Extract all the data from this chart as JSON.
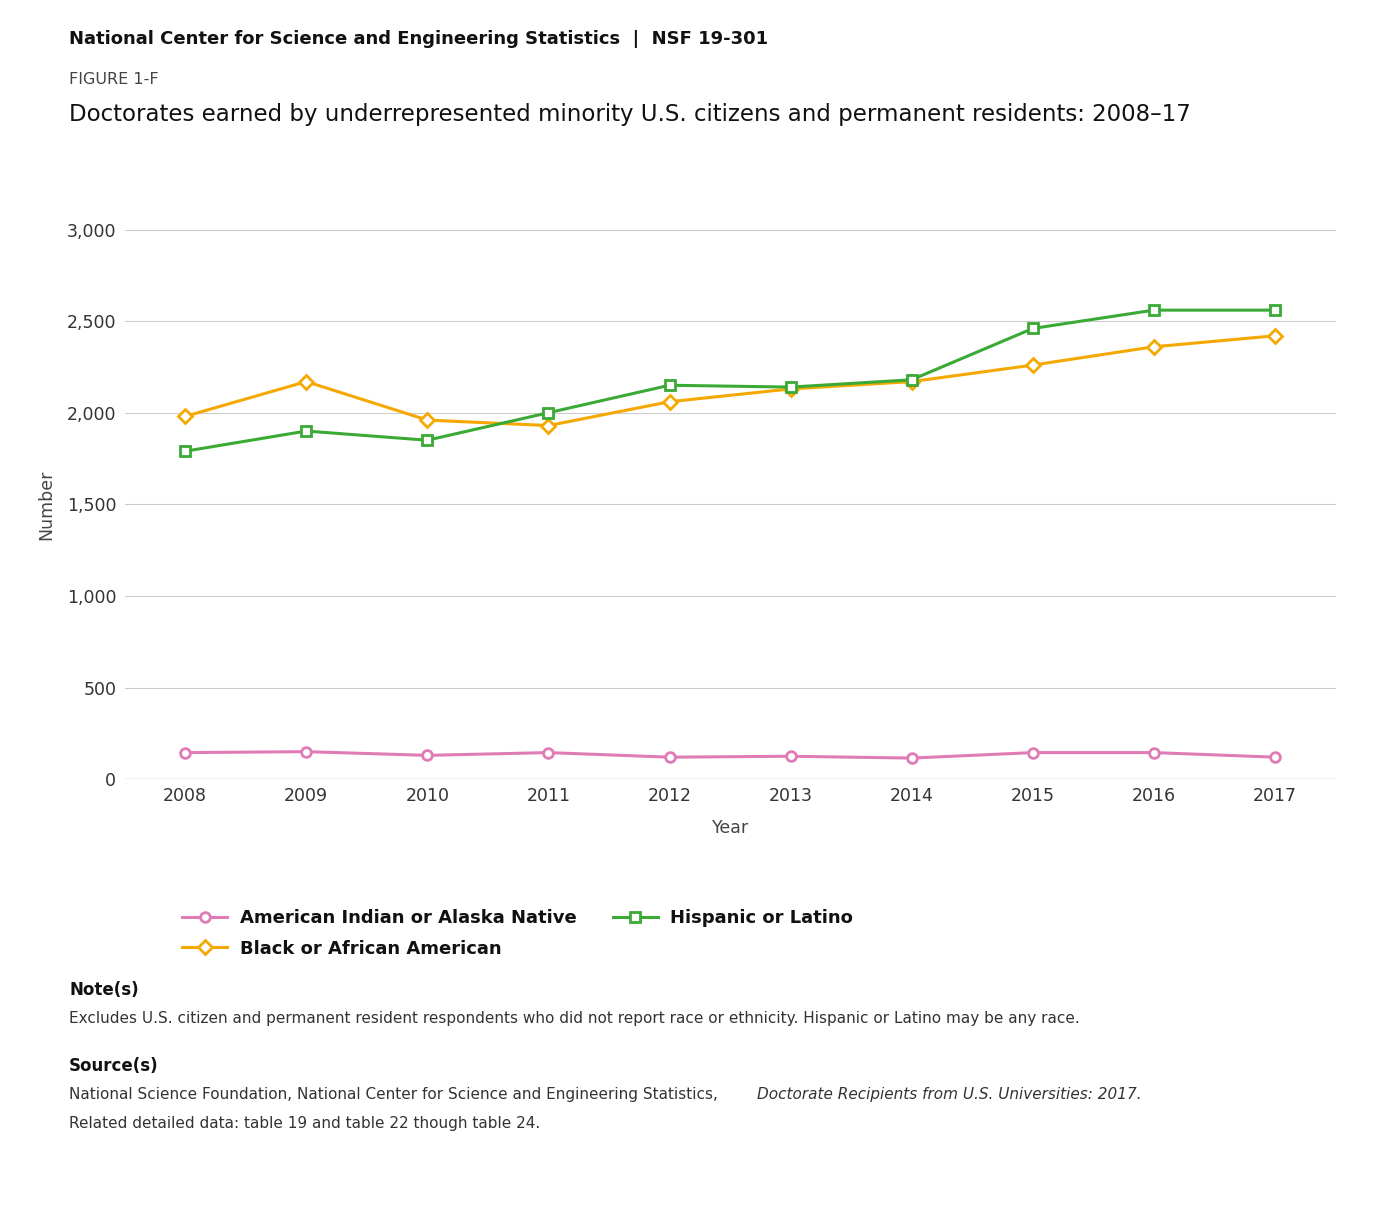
{
  "years": [
    2008,
    2009,
    2010,
    2011,
    2012,
    2013,
    2014,
    2015,
    2016,
    2017
  ],
  "american_indian": [
    145,
    150,
    130,
    145,
    120,
    125,
    115,
    145,
    145,
    120
  ],
  "black_african": [
    1980,
    2170,
    1960,
    1930,
    2060,
    2130,
    2170,
    2260,
    2360,
    2420
  ],
  "hispanic_latino": [
    1790,
    1900,
    1850,
    2000,
    2150,
    2140,
    2180,
    2460,
    2560,
    2560
  ],
  "colors": {
    "american_indian": "#e07bb5",
    "black_african": "#f5a800",
    "hispanic_latino": "#3aaa35"
  },
  "title_org": "National Center for Science and Engineering Statistics  |  NSF 19-301",
  "figure_label": "FIGURE 1-F",
  "chart_title": "Doctorates earned by underrepresented minority U.S. citizens and permanent residents: 2008–17",
  "ylabel": "Number",
  "xlabel": "Year",
  "ylim": [
    0,
    3000
  ],
  "yticks": [
    0,
    500,
    1000,
    1500,
    2000,
    2500,
    3000
  ],
  "legend_labels": [
    "American Indian or Alaska Native",
    "Black or African American",
    "Hispanic or Latino"
  ],
  "note_title": "Note(s)",
  "note_text": "Excludes U.S. citizen and permanent resident respondents who did not report race or ethnicity. Hispanic or Latino may be any race.",
  "source_title": "Source(s)",
  "source_normal": "National Science Foundation, National Center for Science and Engineering Statistics, ",
  "source_italic": "Doctorate Recipients from U.S. Universities: 2017.",
  "source_line2": "Related detailed data: table 19 and table 22 though table 24.",
  "background_color": "#ffffff",
  "marker_size": 7,
  "line_width": 2.2
}
